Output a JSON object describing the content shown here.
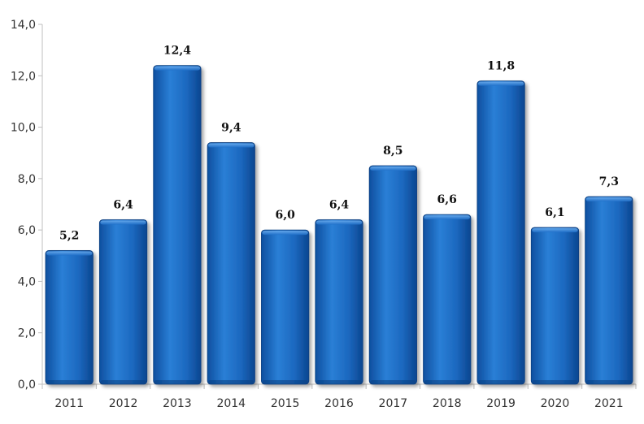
{
  "chart_data": {
    "type": "bar",
    "categories": [
      "2011",
      "2012",
      "2013",
      "2014",
      "2015",
      "2016",
      "2017",
      "2018",
      "2019",
      "2020",
      "2021"
    ],
    "values": [
      5.2,
      6.4,
      12.4,
      9.4,
      6.0,
      6.4,
      8.5,
      6.6,
      11.8,
      6.1,
      7.3
    ],
    "data_labels": [
      "5,2",
      "6,4",
      "12,4",
      "9,4",
      "6,0",
      "6,4",
      "8,5",
      "6,6",
      "11,8",
      "6,1",
      "7,3"
    ],
    "y_ticks": [
      0,
      2,
      4,
      6,
      8,
      10,
      12,
      14
    ],
    "y_tick_labels": [
      "0,0",
      "2,0",
      "4,0",
      "6,0",
      "8,0",
      "10,0",
      "12,0",
      "14,0"
    ],
    "ylim": [
      0,
      14
    ],
    "grid": false,
    "legend": "none",
    "bar_color": "#1f6fc9"
  }
}
